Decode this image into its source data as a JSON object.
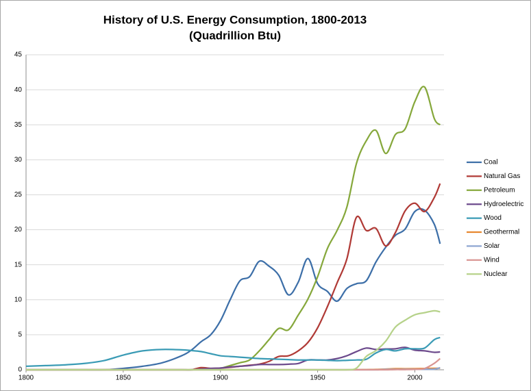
{
  "chart_data": {
    "type": "line",
    "title": "History of U.S. Energy Consumption, 1800-2013",
    "subtitle": "(Quadrillion Btu)",
    "x": [
      1800,
      1810,
      1820,
      1830,
      1840,
      1850,
      1860,
      1870,
      1880,
      1885,
      1890,
      1895,
      1900,
      1905,
      1910,
      1915,
      1920,
      1925,
      1930,
      1935,
      1940,
      1945,
      1950,
      1955,
      1960,
      1965,
      1970,
      1975,
      1980,
      1985,
      1990,
      1995,
      2000,
      2005,
      2010,
      2013
    ],
    "xlim": [
      1800,
      2015
    ],
    "xticks": [
      1800,
      1850,
      1900,
      1950,
      2000
    ],
    "ylim": [
      0,
      45
    ],
    "yticks": [
      0,
      5,
      10,
      15,
      20,
      25,
      30,
      35,
      40,
      45
    ],
    "grid": true,
    "legend": "right",
    "series": [
      {
        "name": "Coal",
        "color": "#3d6fa8",
        "values": [
          0,
          0,
          0,
          0,
          0,
          0.2,
          0.5,
          1.0,
          2.0,
          2.8,
          4.0,
          5.0,
          7.0,
          10.0,
          12.7,
          13.3,
          15.5,
          14.8,
          13.5,
          10.7,
          12.5,
          15.9,
          12.3,
          11.2,
          9.8,
          11.6,
          12.3,
          12.7,
          15.4,
          17.5,
          19.2,
          20.1,
          22.6,
          22.8,
          20.8,
          18.0
        ]
      },
      {
        "name": "Natural Gas",
        "color": "#b03a36",
        "values": [
          0,
          0,
          0,
          0,
          0,
          0,
          0,
          0,
          0,
          0,
          0.3,
          0.2,
          0.25,
          0.35,
          0.5,
          0.65,
          0.8,
          1.2,
          1.9,
          2.0,
          2.7,
          3.9,
          6.0,
          9.0,
          12.4,
          15.8,
          21.8,
          19.9,
          20.2,
          17.7,
          19.6,
          22.7,
          23.8,
          22.6,
          24.6,
          26.6
        ]
      },
      {
        "name": "Petroleum",
        "color": "#86a83c",
        "values": [
          0,
          0,
          0,
          0,
          0,
          0,
          0,
          0,
          0,
          0,
          0.1,
          0.1,
          0.2,
          0.6,
          1.0,
          1.4,
          2.7,
          4.3,
          5.9,
          5.7,
          7.8,
          10.1,
          13.3,
          17.3,
          19.9,
          23.2,
          29.5,
          32.7,
          34.2,
          30.9,
          33.6,
          34.4,
          38.3,
          40.4,
          35.9,
          35.0
        ]
      },
      {
        "name": "Hydroelectric",
        "color": "#6c4a8c",
        "values": [
          0,
          0,
          0,
          0,
          0,
          0,
          0,
          0,
          0,
          0,
          0.1,
          0.2,
          0.25,
          0.4,
          0.5,
          0.6,
          0.75,
          0.75,
          0.75,
          0.8,
          0.9,
          1.4,
          1.4,
          1.4,
          1.6,
          2.0,
          2.6,
          3.1,
          2.9,
          2.97,
          3.0,
          3.2,
          2.8,
          2.7,
          2.5,
          2.55
        ]
      },
      {
        "name": "Wood",
        "color": "#3a9bb5",
        "values": [
          0.5,
          0.6,
          0.7,
          0.9,
          1.3,
          2.1,
          2.7,
          2.9,
          2.85,
          2.75,
          2.6,
          2.3,
          2.0,
          1.9,
          1.8,
          1.7,
          1.6,
          1.55,
          1.5,
          1.45,
          1.4,
          1.4,
          1.4,
          1.35,
          1.3,
          1.35,
          1.4,
          1.5,
          2.4,
          2.9,
          2.7,
          3.0,
          3.0,
          3.1,
          4.3,
          4.6
        ]
      },
      {
        "name": "Geothermal",
        "color": "#e8882f",
        "values": [
          0,
          0,
          0,
          0,
          0,
          0,
          0,
          0,
          0,
          0,
          0,
          0,
          0,
          0,
          0,
          0,
          0,
          0,
          0,
          0,
          0,
          0,
          0,
          0,
          0,
          0,
          0.01,
          0.03,
          0.05,
          0.1,
          0.16,
          0.15,
          0.16,
          0.18,
          0.21,
          0.22
        ]
      },
      {
        "name": "Solar",
        "color": "#8ea6d2",
        "values": [
          0,
          0,
          0,
          0,
          0,
          0,
          0,
          0,
          0,
          0,
          0,
          0,
          0,
          0,
          0,
          0,
          0,
          0,
          0,
          0,
          0,
          0,
          0,
          0,
          0,
          0,
          0,
          0,
          0,
          0.06,
          0.06,
          0.07,
          0.07,
          0.07,
          0.09,
          0.3
        ]
      },
      {
        "name": "Wind",
        "color": "#d99592",
        "values": [
          0,
          0,
          0,
          0,
          0,
          0,
          0,
          0,
          0,
          0,
          0,
          0,
          0,
          0,
          0,
          0,
          0,
          0,
          0,
          0,
          0,
          0,
          0,
          0,
          0,
          0,
          0,
          0,
          0,
          0,
          0.03,
          0.03,
          0.06,
          0.18,
          0.92,
          1.6
        ]
      },
      {
        "name": "Nuclear",
        "color": "#b6d28a",
        "values": [
          0,
          0,
          0,
          0,
          0,
          0,
          0,
          0,
          0,
          0,
          0,
          0,
          0,
          0,
          0,
          0,
          0,
          0,
          0,
          0,
          0,
          0,
          0,
          0,
          0,
          0,
          0.24,
          1.9,
          2.74,
          4.08,
          6.1,
          7.08,
          7.86,
          8.16,
          8.43,
          8.27
        ]
      }
    ]
  }
}
